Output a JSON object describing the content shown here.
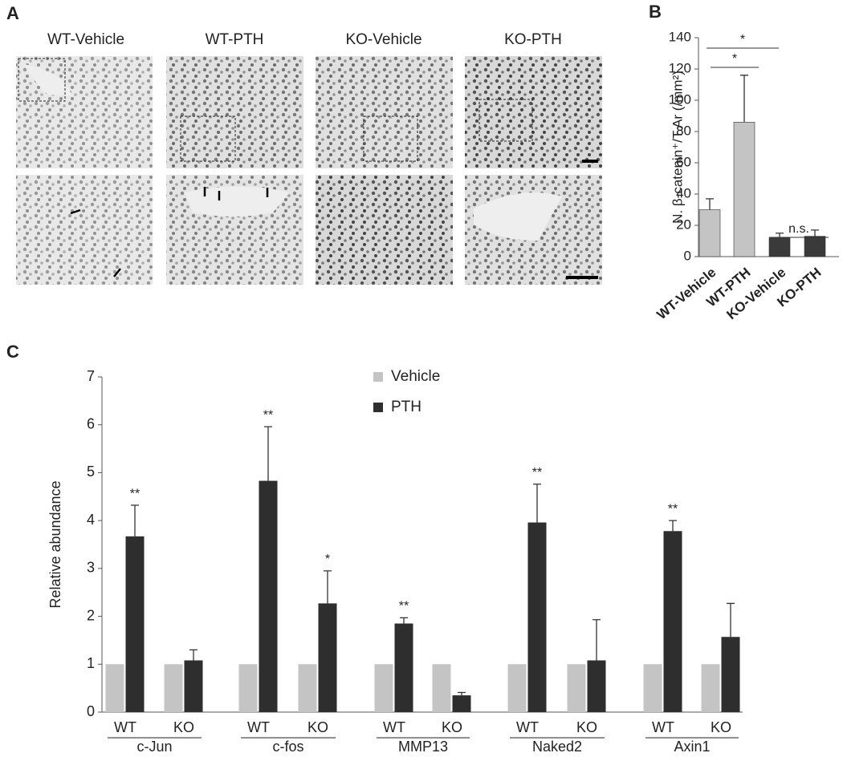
{
  "panel_labels": [
    "A",
    "B",
    "C"
  ],
  "panel_a": {
    "titles": [
      "WT-Vehicle",
      "WT-PTH",
      "KO-Vehicle",
      "KO-PTH"
    ]
  },
  "chart_data": [
    {
      "type": "bar",
      "ylabel": "N. β-catenin⁺/T.Ar (/mm²)",
      "categories": [
        "WT-Vehicle",
        "WT-PTH",
        "KO-Vehicle",
        "KO-PTH"
      ],
      "values": [
        30,
        86,
        12,
        13
      ],
      "errors": [
        7,
        30,
        3,
        4
      ],
      "colors": [
        "#c4c4c4",
        "#c4c4c4",
        "#3a3a3a",
        "#3a3a3a"
      ],
      "ylim": [
        0,
        140
      ],
      "yticks": [
        0,
        20,
        40,
        60,
        80,
        100,
        120,
        140
      ],
      "annotations": [
        "*",
        "*",
        "n.s."
      ]
    },
    {
      "type": "bar",
      "ylabel": "Relative abundance",
      "categories": [
        "WT",
        "KO",
        "WT",
        "KO",
        "WT",
        "KO",
        "WT",
        "KO",
        "WT",
        "KO"
      ],
      "groups": [
        "c-Jun",
        "c-fos",
        "MMP13",
        "Naked2",
        "Axin1"
      ],
      "series": [
        {
          "name": "Vehicle",
          "color": "#c4c4c4",
          "values": [
            1,
            1,
            1,
            1,
            1,
            1,
            1,
            1,
            1,
            1
          ]
        },
        {
          "name": "PTH",
          "color": "#2e2e2e",
          "values": [
            3.67,
            1.08,
            4.83,
            2.27,
            1.85,
            0.35,
            3.96,
            1.08,
            3.78,
            1.57
          ],
          "errors": [
            0.65,
            0.22,
            1.13,
            0.68,
            0.12,
            0.06,
            0.8,
            0.85,
            0.22,
            0.7
          ],
          "annotations": [
            "**",
            null,
            "**",
            "*",
            "**",
            null,
            "**",
            null,
            "**",
            null
          ]
        }
      ],
      "ylim": [
        0,
        7
      ],
      "yticks": [
        0,
        1,
        2,
        3,
        4,
        5,
        6,
        7
      ],
      "legend": "top"
    }
  ]
}
